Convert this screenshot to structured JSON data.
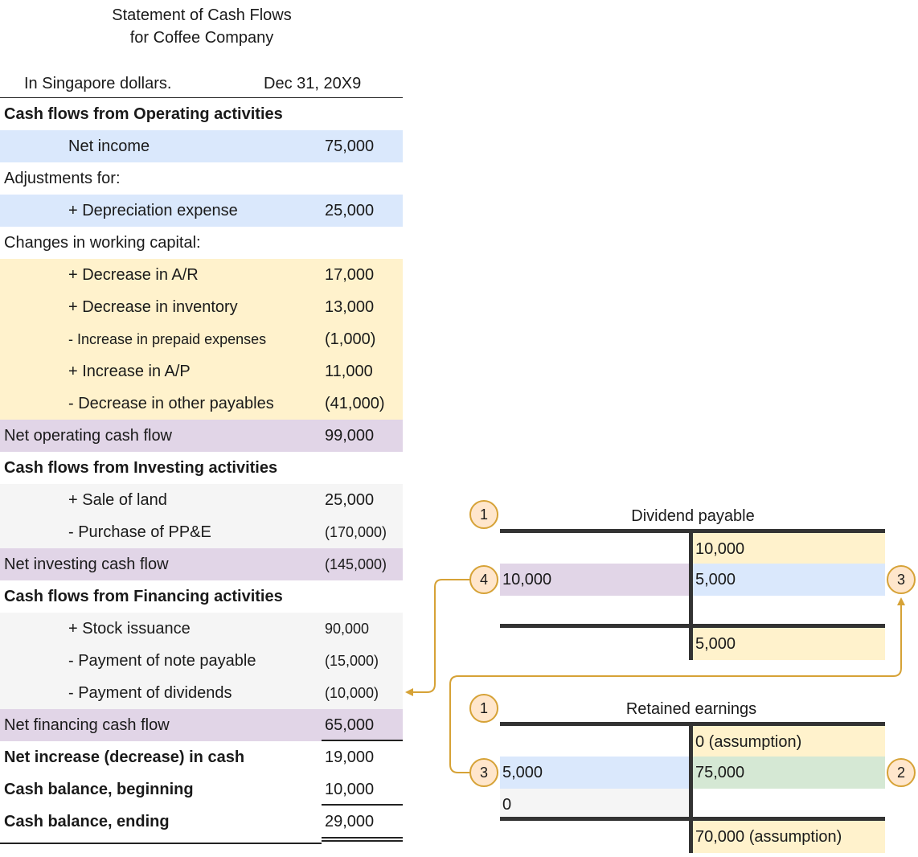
{
  "statement": {
    "title_line1": "Statement of Cash Flows",
    "title_line2": "for Coffee Company",
    "currency_note": "In Singapore dollars.",
    "date": "Dec 31, 20X9",
    "operating": {
      "header": "Cash flows from Operating activities",
      "net_income_label": "Net income",
      "net_income_value": "75,000",
      "adjustments_label": "Adjustments for:",
      "depreciation_label": "+ Depreciation expense",
      "depreciation_value": "25,000",
      "working_capital_label": "Changes in working capital:",
      "items": [
        {
          "label": "+ Decrease in A/R",
          "value": "17,000"
        },
        {
          "label": "+ Decrease in inventory",
          "value": "13,000"
        },
        {
          "label": "- Increase in prepaid expenses",
          "value": "(1,000)"
        },
        {
          "label": "+ Increase in A/P",
          "value": "11,000"
        },
        {
          "label": "- Decrease in other payables",
          "value": "(41,000)"
        }
      ],
      "net_label": "Net operating cash flow",
      "net_value": "99,000"
    },
    "investing": {
      "header": "Cash flows from Investing activities",
      "items": [
        {
          "label": "+ Sale of land",
          "value": "25,000"
        },
        {
          "label": "- Purchase of PP&E",
          "value": "(170,000)"
        }
      ],
      "net_label": "Net investing cash flow",
      "net_value": "(145,000)"
    },
    "financing": {
      "header": "Cash flows from Financing activities",
      "items": [
        {
          "label": "+ Stock issuance",
          "value": "90,000"
        },
        {
          "label": "- Payment of note payable",
          "value": "(15,000)"
        },
        {
          "label": "- Payment of dividends",
          "value": "(10,000)"
        }
      ],
      "net_label": "Net financing cash flow",
      "net_value": "65,000"
    },
    "totals": {
      "net_increase_label": "Net increase (decrease) in cash",
      "net_increase_value": "19,000",
      "beginning_label": "Cash balance, beginning",
      "beginning_value": "10,000",
      "ending_label": "Cash balance, ending",
      "ending_value": "29,000"
    }
  },
  "dividend_payable": {
    "title": "Dividend payable",
    "step_title": "1",
    "credit_opening": "10,000",
    "debit_entry": "10,000",
    "debit_step": "4",
    "credit_entry": "5,000",
    "credit_step": "3",
    "credit_closing": "5,000"
  },
  "retained_earnings": {
    "title": "Retained earnings",
    "step_title": "1",
    "credit_opening": "0 (assumption)",
    "debit_entry": "5,000",
    "debit_step": "3",
    "credit_entry": "75,000",
    "credit_step": "2",
    "debit_zero": "0",
    "credit_closing": "70,000 (assumption)"
  },
  "colors": {
    "blue": "#dae8fc",
    "yellow": "#fff2cc",
    "purple": "#e1d5e7",
    "grey": "#f5f5f5",
    "green": "#d5e8d4",
    "arrow": "#d6a236",
    "circle_fill": "#ffe6cc"
  }
}
